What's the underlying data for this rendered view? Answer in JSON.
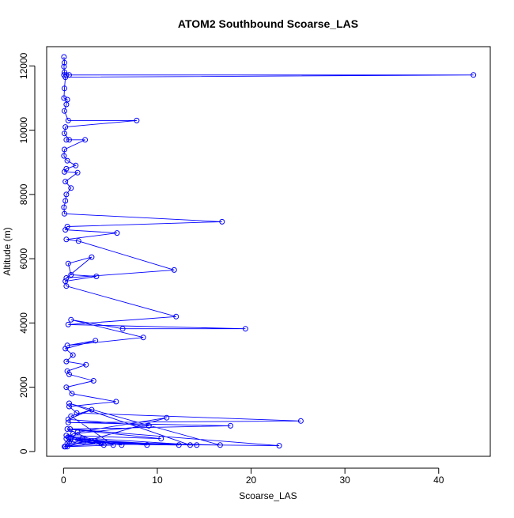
{
  "chart_data": {
    "type": "line",
    "title": "ATOM2 Southbound Scoarse_LAS",
    "xlabel": "Scoarse_LAS",
    "ylabel": "Altitude (m)",
    "xlim": [
      -1.8,
      45.5
    ],
    "ylim": [
      -150,
      12600
    ],
    "x_ticks": [
      0,
      10,
      20,
      30,
      40
    ],
    "x_tick_labels": [
      "0",
      "10",
      "20",
      "30",
      "40"
    ],
    "y_ticks": [
      0,
      2000,
      4000,
      6000,
      8000,
      10000,
      12000
    ],
    "y_tick_labels": [
      "0",
      "2000",
      "4000",
      "6000",
      "8000",
      "10000",
      "12000"
    ],
    "grid": false,
    "legend": "none",
    "colors": {
      "series": "#0000ff",
      "axes": "#000000",
      "background": "#ffffff"
    },
    "series": [
      {
        "marker": "open-circle",
        "line": "solid",
        "x": [
          0.05,
          0.1,
          0.05,
          0.1,
          0.05,
          0.3,
          0.6,
          43.7,
          0.2,
          0.1,
          0.05,
          0.4,
          0.3,
          0.1,
          0.5,
          7.8,
          0.2,
          0.1,
          0.6,
          0.3,
          2.3,
          0.1,
          0.05,
          0.4,
          1.3,
          0.3,
          0.1,
          1.5,
          0.2,
          0.8,
          0.3,
          0.2,
          0.05,
          0.1,
          16.9,
          0.4,
          0.2,
          5.7,
          0.3,
          1.6,
          11.8,
          0.3,
          3.0,
          0.5,
          0.8,
          3.5,
          0.2,
          0.3,
          12.0,
          0.5,
          19.4,
          6.3,
          0.8,
          8.5,
          0.4,
          3.4,
          0.2,
          1.0,
          0.3,
          2.4,
          0.4,
          0.6,
          3.2,
          0.3,
          0.9,
          5.6,
          0.6,
          1.4,
          25.3,
          0.5,
          17.8,
          0.7,
          23.0,
          0.4,
          12.3,
          0.3,
          1.0,
          9.1,
          0.5,
          3.0,
          0.8,
          5.3,
          0.4,
          11.0,
          1.5,
          0.6,
          14.2,
          0.5,
          6.2,
          2.0,
          8.9,
          3.5,
          0.3,
          10.4,
          0.4,
          4.3,
          1.2,
          13.5,
          0.6,
          16.7,
          2.1,
          0.1,
          0.8,
          4.0,
          0.2
        ],
        "y": [
          12280,
          12100,
          11980,
          11800,
          11720,
          11720,
          11720,
          11720,
          11650,
          11300,
          11000,
          10950,
          10800,
          10600,
          10300,
          10300,
          10100,
          9900,
          9700,
          9700,
          9700,
          9400,
          9200,
          9050,
          8900,
          8800,
          8700,
          8680,
          8400,
          8200,
          8000,
          7800,
          7600,
          7400,
          7150,
          7000,
          6900,
          6800,
          6600,
          6550,
          5650,
          5400,
          6050,
          5850,
          5500,
          5450,
          5300,
          5150,
          4200,
          3950,
          3820,
          3820,
          4100,
          3550,
          3300,
          3450,
          3200,
          3000,
          2800,
          2700,
          2500,
          2400,
          2200,
          2000,
          1800,
          1550,
          1400,
          1200,
          950,
          900,
          800,
          700,
          180,
          250,
          200,
          400,
          550,
          800,
          1000,
          1300,
          1100,
          200,
          150,
          1050,
          600,
          300,
          200,
          450,
          200,
          400,
          200,
          300,
          500,
          400,
          700,
          200,
          350,
          200,
          1500,
          200,
          300,
          150,
          400,
          250,
          150
        ]
      }
    ]
  }
}
